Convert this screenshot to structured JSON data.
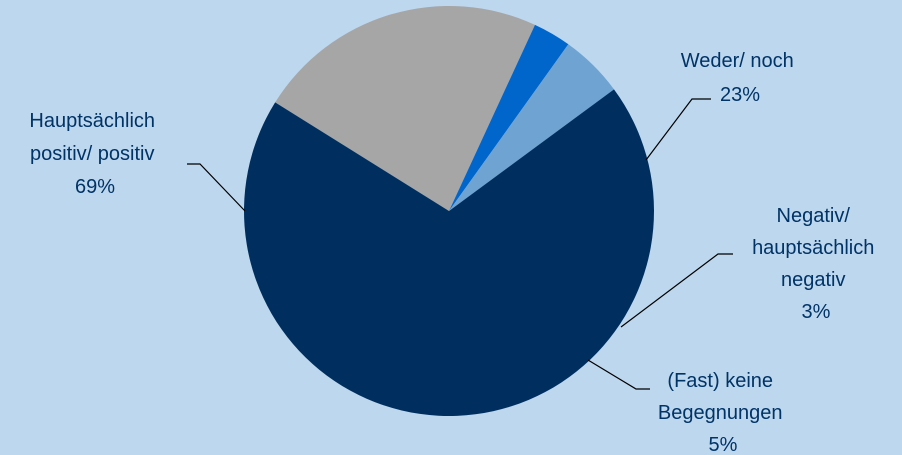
{
  "chart_data": {
    "type": "pie",
    "title": "",
    "start": "clockwise from upper right",
    "slices": [
      {
        "label_lines": [
          "Weder/ noch",
          "23%"
        ],
        "value": 23,
        "color": "#a6a6a6"
      },
      {
        "label_lines": [
          "Negativ/",
          "hauptsächlich",
          "negativ",
          "3%"
        ],
        "value": 3,
        "color": "#0066cc"
      },
      {
        "label_lines": [
          "(Fast) keine",
          "Begegnungen",
          "5%"
        ],
        "value": 5,
        "color": "#6fa3d2"
      },
      {
        "label_lines": [
          "Hauptsächlich",
          "positiv/ positiv",
          "69%"
        ],
        "value": 69,
        "color": "#002f5f"
      }
    ]
  }
}
